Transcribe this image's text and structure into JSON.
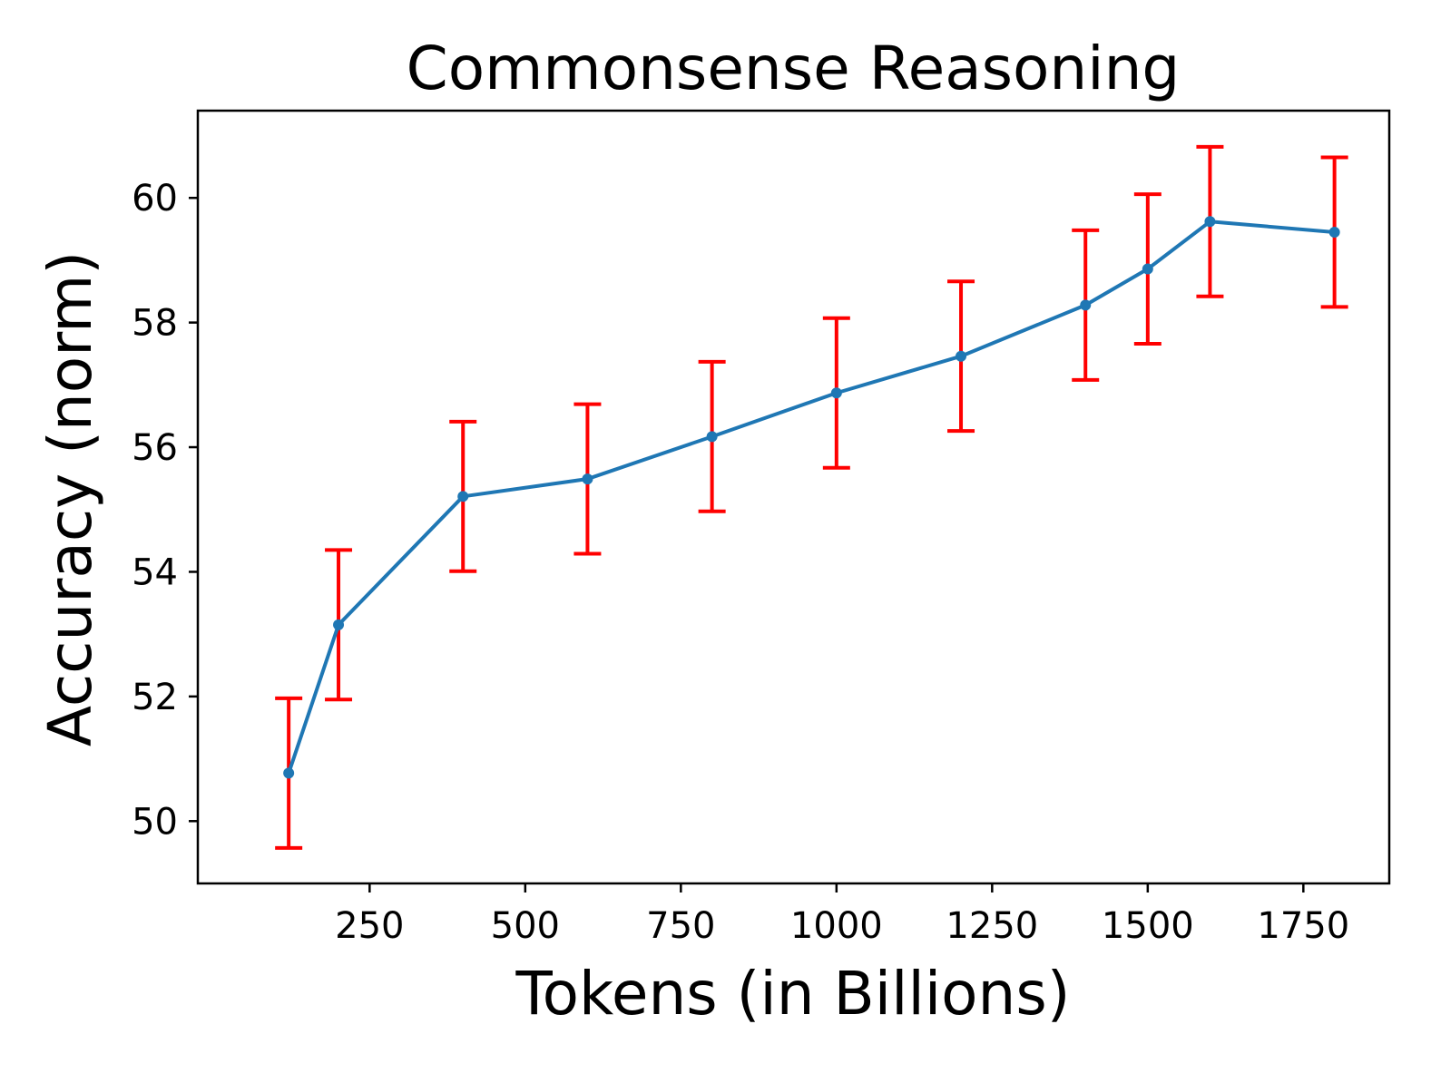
{
  "chart_data": {
    "type": "line",
    "title": "Commonsense Reasoning",
    "xlabel": "Tokens (in Billions)",
    "ylabel": "Accuracy (norm)",
    "xlim": [
      -26,
      1888
    ],
    "ylim": [
      49.0,
      61.4
    ],
    "x_ticks": [
      250,
      500,
      750,
      1000,
      1250,
      1500,
      1750
    ],
    "x_tick_labels": [
      "250",
      "500",
      "750",
      "1000",
      "1250",
      "1500",
      "1750"
    ],
    "y_ticks": [
      50,
      52,
      54,
      56,
      58,
      60
    ],
    "y_tick_labels": [
      "50",
      "52",
      "54",
      "56",
      "58",
      "60"
    ],
    "grid": false,
    "series": [
      {
        "x": [
          120,
          200,
          400,
          600,
          800,
          1000,
          1200,
          1400,
          1500,
          1600,
          1800
        ],
        "values": [
          50.77,
          53.15,
          55.21,
          55.49,
          56.17,
          56.87,
          57.46,
          58.28,
          58.86,
          59.62,
          59.45
        ],
        "error": [
          1.2,
          1.2,
          1.2,
          1.2,
          1.2,
          1.2,
          1.2,
          1.2,
          1.2,
          1.2,
          1.2
        ],
        "color": "#1f77b4",
        "error_color": "#ff0000"
      }
    ]
  }
}
